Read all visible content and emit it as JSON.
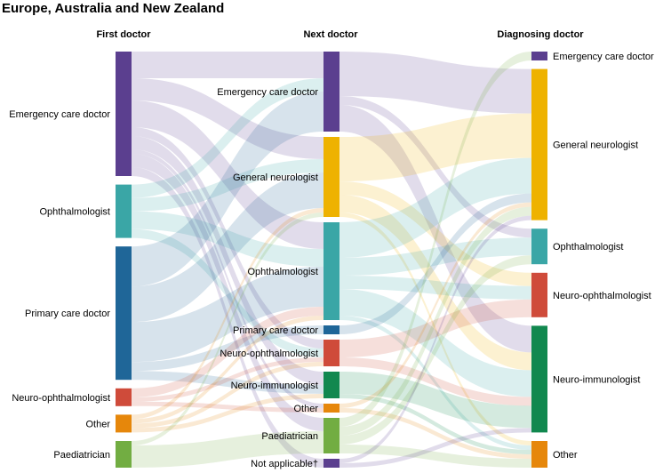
{
  "title": "Europe, Australia and New Zealand",
  "columns": [
    {
      "label": "First doctor"
    },
    {
      "label": "Next doctor"
    },
    {
      "label": "Diagnosing doctor"
    }
  ],
  "colors": {
    "emergency": "#5b3f8f",
    "neurologist": "#eeb200",
    "ophthalmologist": "#3aa6a6",
    "primary": "#1f6698",
    "neuro_ophthalmologist": "#cf4b3a",
    "neuro_immunologist": "#11884f",
    "other": "#e6870b",
    "paediatrician": "#72ad42"
  },
  "nodes": [
    {
      "id": "f_emg",
      "col": 0,
      "label": "Emergency care doctor",
      "color": "emergency",
      "value": 28
    },
    {
      "id": "f_oph",
      "col": 0,
      "label": "Ophthalmologist",
      "color": "ophthalmologist",
      "value": 12
    },
    {
      "id": "f_pcd",
      "col": 0,
      "label": "Primary care doctor",
      "color": "primary",
      "value": 30
    },
    {
      "id": "f_nop",
      "col": 0,
      "label": "Neuro-ophthalmologist",
      "color": "neuro_ophthalmologist",
      "value": 4
    },
    {
      "id": "f_oth",
      "col": 0,
      "label": "Other",
      "color": "other",
      "value": 4
    },
    {
      "id": "f_pae",
      "col": 0,
      "label": "Paediatrician",
      "color": "paediatrician",
      "value": 6
    },
    {
      "id": "n_emg",
      "col": 1,
      "label": "Emergency care doctor",
      "color": "emergency",
      "value": 18
    },
    {
      "id": "n_neu",
      "col": 1,
      "label": "General neurologist",
      "color": "neurologist",
      "value": 18
    },
    {
      "id": "n_oph",
      "col": 1,
      "label": "Ophthalmologist",
      "color": "ophthalmologist",
      "value": 22
    },
    {
      "id": "n_pcd",
      "col": 1,
      "label": "Primary care doctor",
      "color": "primary",
      "value": 2
    },
    {
      "id": "n_nop",
      "col": 1,
      "label": "Neuro-ophthalmologist",
      "color": "neuro_ophthalmologist",
      "value": 6
    },
    {
      "id": "n_nim",
      "col": 1,
      "label": "Neuro-immunologist",
      "color": "neuro_immunologist",
      "value": 6
    },
    {
      "id": "n_oth",
      "col": 1,
      "label": "Other",
      "color": "other",
      "value": 2
    },
    {
      "id": "n_pae",
      "col": 1,
      "label": "Paediatrician",
      "color": "paediatrician",
      "value": 8
    },
    {
      "id": "n_na",
      "col": 1,
      "label": "Not applicable†",
      "color": "emergency",
      "value": 2
    },
    {
      "id": "d_emg",
      "col": 2,
      "label": "Emergency care doctor",
      "color": "emergency",
      "value": 2
    },
    {
      "id": "d_neu",
      "col": 2,
      "label": "General neurologist",
      "color": "neurologist",
      "value": 34
    },
    {
      "id": "d_oph",
      "col": 2,
      "label": "Ophthalmologist",
      "color": "ophthalmologist",
      "value": 8
    },
    {
      "id": "d_nop",
      "col": 2,
      "label": "Neuro-ophthalmologist",
      "color": "neuro_ophthalmologist",
      "value": 10
    },
    {
      "id": "d_nim",
      "col": 2,
      "label": "Neuro-immunologist",
      "color": "neuro_immunologist",
      "value": 24
    },
    {
      "id": "d_oth",
      "col": 2,
      "label": "Other",
      "color": "other",
      "value": 6
    }
  ],
  "links": [
    {
      "source": "f_emg",
      "target": "n_emg",
      "value": 6
    },
    {
      "source": "f_emg",
      "target": "n_neu",
      "value": 5
    },
    {
      "source": "f_emg",
      "target": "n_oph",
      "value": 6
    },
    {
      "source": "f_emg",
      "target": "n_nop",
      "value": 2
    },
    {
      "source": "f_emg",
      "target": "n_nim",
      "value": 3
    },
    {
      "source": "f_emg",
      "target": "n_oth",
      "value": 1
    },
    {
      "source": "f_emg",
      "target": "n_pae",
      "value": 3
    },
    {
      "source": "f_emg",
      "target": "n_na",
      "value": 2
    },
    {
      "source": "f_oph",
      "target": "n_emg",
      "value": 3
    },
    {
      "source": "f_oph",
      "target": "n_neu",
      "value": 3
    },
    {
      "source": "f_oph",
      "target": "n_oph",
      "value": 4
    },
    {
      "source": "f_oph",
      "target": "n_nop",
      "value": 2
    },
    {
      "source": "f_pcd",
      "target": "n_emg",
      "value": 9
    },
    {
      "source": "f_pcd",
      "target": "n_neu",
      "value": 8
    },
    {
      "source": "f_pcd",
      "target": "n_oph",
      "value": 9
    },
    {
      "source": "f_pcd",
      "target": "n_pcd",
      "value": 2
    },
    {
      "source": "f_pcd",
      "target": "n_nim",
      "value": 2
    },
    {
      "source": "f_nop",
      "target": "n_oph",
      "value": 2
    },
    {
      "source": "f_nop",
      "target": "n_nop",
      "value": 1
    },
    {
      "source": "f_nop",
      "target": "n_oth",
      "value": 1
    },
    {
      "source": "f_oth",
      "target": "n_neu",
      "value": 1
    },
    {
      "source": "f_oth",
      "target": "n_oph",
      "value": 1
    },
    {
      "source": "f_oth",
      "target": "n_nop",
      "value": 1
    },
    {
      "source": "f_oth",
      "target": "n_nim",
      "value": 1
    },
    {
      "source": "f_pae",
      "target": "n_neu",
      "value": 1
    },
    {
      "source": "f_pae",
      "target": "n_pae",
      "value": 5
    },
    {
      "source": "n_emg",
      "target": "d_neu",
      "value": 10
    },
    {
      "source": "n_emg",
      "target": "d_oph",
      "value": 2
    },
    {
      "source": "n_emg",
      "target": "d_nim",
      "value": 6
    },
    {
      "source": "n_neu",
      "target": "d_neu",
      "value": 10
    },
    {
      "source": "n_neu",
      "target": "d_nop",
      "value": 3
    },
    {
      "source": "n_neu",
      "target": "d_nim",
      "value": 4
    },
    {
      "source": "n_neu",
      "target": "d_oth",
      "value": 1
    },
    {
      "source": "n_oph",
      "target": "d_neu",
      "value": 8
    },
    {
      "source": "n_oph",
      "target": "d_oph",
      "value": 4
    },
    {
      "source": "n_oph",
      "target": "d_nop",
      "value": 3
    },
    {
      "source": "n_oph",
      "target": "d_nim",
      "value": 6
    },
    {
      "source": "n_oph",
      "target": "d_oth",
      "value": 1
    },
    {
      "source": "n_pcd",
      "target": "d_neu",
      "value": 2
    },
    {
      "source": "n_nop",
      "target": "d_nop",
      "value": 4
    },
    {
      "source": "n_nop",
      "target": "d_nim",
      "value": 2
    },
    {
      "source": "n_nim",
      "target": "d_nim",
      "value": 5
    },
    {
      "source": "n_nim",
      "target": "d_oth",
      "value": 1
    },
    {
      "source": "n_oth",
      "target": "d_neu",
      "value": 1
    },
    {
      "source": "n_oth",
      "target": "d_oth",
      "value": 1
    },
    {
      "source": "n_pae",
      "target": "d_emg",
      "value": 2
    },
    {
      "source": "n_pae",
      "target": "d_neu",
      "value": 2
    },
    {
      "source": "n_pae",
      "target": "d_oph",
      "value": 2
    },
    {
      "source": "n_pae",
      "target": "d_oth",
      "value": 2
    },
    {
      "source": "n_na",
      "target": "d_neu",
      "value": 1
    },
    {
      "source": "n_na",
      "target": "d_nim",
      "value": 1
    }
  ]
}
